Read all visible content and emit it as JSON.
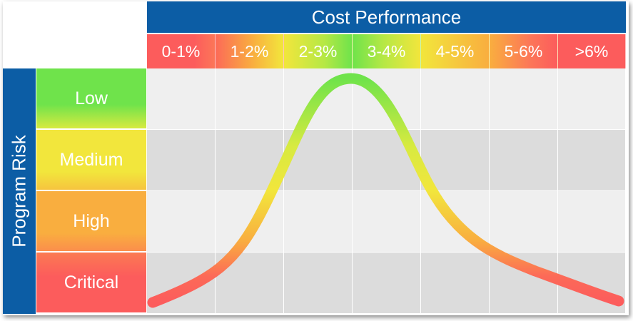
{
  "header": {
    "title": "Cost Performance"
  },
  "columns": [
    "0-1%",
    "1-2%",
    "2-3%",
    "3-4%",
    "4-5%",
    "5-6%",
    ">6%"
  ],
  "side": {
    "title": "Program Risk"
  },
  "rows": [
    "Low",
    "Medium",
    "High",
    "Critical"
  ],
  "colors": {
    "brand_blue": "#0c5da5",
    "green": "#6fe34b",
    "yellow": "#f2e63c",
    "orange": "#f9ae3f",
    "red": "#fc5c5c",
    "grid_light": "#efefef",
    "grid_dark": "#dcdcdc"
  }
}
